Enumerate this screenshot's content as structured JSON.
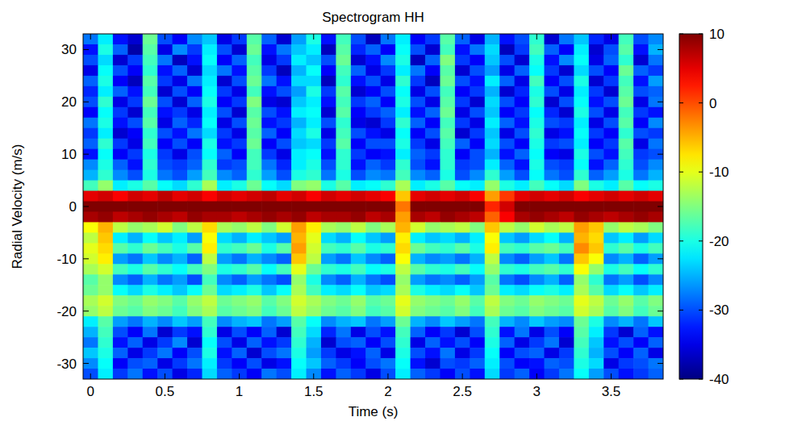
{
  "chart_data": {
    "type": "heatmap",
    "title": "Spectrogram HH",
    "x_label": "Time (s)",
    "y_label": "Radial Velocity (m/s)",
    "x": [
      0,
      0.1,
      0.2,
      0.3,
      0.4,
      0.5,
      0.6,
      0.7,
      0.8,
      0.9,
      1,
      1.1,
      1.2,
      1.3,
      1.4,
      1.5,
      1.6,
      1.7,
      1.8,
      1.9,
      2,
      2.1,
      2.2,
      2.3,
      2.4,
      2.5,
      2.6,
      2.7,
      2.8,
      2.9,
      3,
      3.1,
      3.2,
      3.3,
      3.4,
      3.5,
      3.6,
      3.7,
      3.8
    ],
    "y": [
      32,
      30,
      28,
      26,
      24,
      22,
      20,
      18,
      16,
      14,
      12,
      10,
      8,
      6,
      4,
      2,
      0,
      -2,
      -4,
      -6,
      -8,
      -10,
      -12,
      -14,
      -16,
      -18,
      -20,
      -22,
      -24,
      -26,
      -28,
      -30,
      -32
    ],
    "cells": [
      [
        -28,
        -22,
        -33,
        -36,
        -16,
        -30,
        -34,
        -27,
        -24,
        -35,
        -31,
        -17,
        -29,
        -36,
        -26,
        -20,
        -33,
        -18,
        -30,
        -37,
        -28,
        -22,
        -34,
        -31,
        -17,
        -29,
        -35,
        -25,
        -33,
        -30,
        -19,
        -36,
        -28,
        -24,
        -32,
        -35,
        -18,
        -30,
        -27
      ],
      [
        -33,
        -20,
        -29,
        -38,
        -17,
        -35,
        -27,
        -31,
        -22,
        -30,
        -36,
        -16,
        -33,
        -28,
        -24,
        -22,
        -37,
        -17,
        -32,
        -29,
        -34,
        -21,
        -30,
        -36,
        -18,
        -33,
        -28,
        -23,
        -37,
        -31,
        -18,
        -29,
        -34,
        -22,
        -36,
        -30,
        -17,
        -33,
        -25
      ],
      [
        -30,
        -23,
        -36,
        -31,
        -18,
        -28,
        -37,
        -33,
        -21,
        -34,
        -29,
        -18,
        -35,
        -31,
        -22,
        -24,
        -30,
        -16,
        -36,
        -33,
        -27,
        -20,
        -37,
        -29,
        -15,
        -31,
        -34,
        -24,
        -30,
        -36,
        -20,
        -33,
        -27,
        -21,
        -35,
        -29,
        -19,
        -36,
        -28
      ],
      [
        -35,
        -21,
        -30,
        -34,
        -19,
        -33,
        -29,
        -36,
        -23,
        -28,
        -33,
        -17,
        -31,
        -37,
        -25,
        -21,
        -34,
        -18,
        -29,
        -35,
        -31,
        -22,
        -28,
        -34,
        -17,
        -36,
        -30,
        -26,
        -35,
        -29,
        -21,
        -31,
        -36,
        -23,
        -30,
        -34,
        -16,
        -29,
        -31
      ],
      [
        -29,
        -20,
        -34,
        -37,
        -17,
        -31,
        -35,
        -28,
        -22,
        -36,
        -30,
        -16,
        -28,
        -33,
        -23,
        -23,
        -37,
        -19,
        -33,
        -30,
        -35,
        -19,
        -31,
        -37,
        -16,
        -30,
        -33,
        -22,
        -29,
        -35,
        -18,
        -34,
        -30,
        -20,
        -36,
        -31,
        -18,
        -33,
        -26
      ],
      [
        -32,
        -22,
        -29,
        -33,
        -18,
        -36,
        -30,
        -34,
        -21,
        -31,
        -35,
        -18,
        -33,
        -30,
        -26,
        -20,
        -31,
        -17,
        -36,
        -34,
        -30,
        -21,
        -35,
        -30,
        -18,
        -34,
        -31,
        -25,
        -36,
        -32,
        -20,
        -30,
        -35,
        -22,
        -31,
        -36,
        -17,
        -30,
        -29
      ],
      [
        -30,
        -19,
        -35,
        -31,
        -16,
        -30,
        -36,
        -29,
        -20,
        -34,
        -31,
        -15,
        -35,
        -36,
        -24,
        -22,
        -33,
        -18,
        -31,
        -29,
        -34,
        -20,
        -30,
        -35,
        -17,
        -31,
        -36,
        -23,
        -30,
        -34,
        -19,
        -36,
        -30,
        -21,
        -33,
        -30,
        -16,
        -35,
        -28
      ],
      [
        -34,
        -21,
        -31,
        -36,
        -18,
        -33,
        -31,
        -35,
        -22,
        -30,
        -36,
        -17,
        -30,
        -33,
        -22,
        -21,
        -36,
        -17,
        -34,
        -31,
        -29,
        -22,
        -33,
        -29,
        -16,
        -35,
        -30,
        -24,
        -34,
        -31,
        -21,
        -32,
        -36,
        -20,
        -30,
        -35,
        -18,
        -31,
        -33
      ],
      [
        -28,
        -20,
        -33,
        -30,
        -17,
        -35,
        -29,
        -32,
        -21,
        -35,
        -30,
        -16,
        -33,
        -31,
        -25,
        -22,
        -30,
        -19,
        -35,
        -36,
        -31,
        -19,
        -29,
        -34,
        -18,
        -31,
        -35,
        -22,
        -29,
        -33,
        -20,
        -30,
        -31,
        -22,
        -35,
        -30,
        -17,
        -34,
        -27
      ],
      [
        -31,
        -22,
        -36,
        -34,
        -19,
        -30,
        -33,
        -28,
        -23,
        -31,
        -35,
        -17,
        -29,
        -34,
        -23,
        -20,
        -35,
        -18,
        -30,
        -33,
        -35,
        -21,
        -34,
        -30,
        -17,
        -36,
        -31,
        -24,
        -35,
        -30,
        -19,
        -35,
        -33,
        -21,
        -31,
        -34,
        -19,
        -30,
        -31
      ],
      [
        -29,
        -19,
        -31,
        -35,
        -18,
        -34,
        -30,
        -34,
        -20,
        -33,
        -31,
        -16,
        -34,
        -30,
        -24,
        -23,
        -31,
        -17,
        -34,
        -30,
        -30,
        -20,
        -31,
        -35,
        -18,
        -29,
        -34,
        -23,
        -30,
        -34,
        -20,
        -31,
        -30,
        -22,
        -34,
        -31,
        -17,
        -35,
        -28
      ],
      [
        -33,
        -21,
        -34,
        -31,
        -20,
        -31,
        -35,
        -30,
        -21,
        -29,
        -34,
        -18,
        -31,
        -35,
        -22,
        -21,
        -33,
        -19,
        -31,
        -34,
        -33,
        -22,
        -29,
        -31,
        -19,
        -34,
        -30,
        -25,
        -33,
        -29,
        -21,
        -34,
        -35,
        -20,
        -30,
        -33,
        -18,
        -31,
        -30
      ],
      [
        -27,
        -20,
        -29,
        -33,
        -19,
        -30,
        -31,
        -29,
        -19,
        -31,
        -30,
        -18,
        -28,
        -32,
        -22,
        -20,
        -30,
        -19,
        -33,
        -29,
        -31,
        -19,
        -30,
        -33,
        -19,
        -31,
        -30,
        -22,
        -29,
        -33,
        -20,
        -30,
        -31,
        -21,
        -33,
        -29,
        -19,
        -30,
        -27
      ],
      [
        -25,
        -19,
        -27,
        -30,
        -20,
        -28,
        -30,
        -26,
        -18,
        -27,
        -29,
        -19,
        -26,
        -30,
        -20,
        -19,
        -28,
        -20,
        -30,
        -27,
        -28,
        -18,
        -27,
        -29,
        -20,
        -30,
        -27,
        -19,
        -26,
        -30,
        -21,
        -28,
        -30,
        -19,
        -29,
        -26,
        -20,
        -28,
        -25
      ],
      [
        -18,
        -14,
        -22,
        -20,
        -17,
        -21,
        -23,
        -19,
        -13,
        -22,
        -20,
        -16,
        -21,
        -23,
        -15,
        -14,
        -20,
        -17,
        -22,
        -21,
        -19,
        -13,
        -22,
        -20,
        -17,
        -21,
        -22,
        -14,
        -20,
        -22,
        -18,
        -21,
        -23,
        -15,
        -20,
        -22,
        -17,
        -21,
        -20
      ],
      [
        5,
        6,
        4,
        6,
        5,
        7,
        5,
        6,
        4,
        6,
        5,
        6,
        7,
        5,
        6,
        4,
        6,
        5,
        6,
        5,
        4,
        -6,
        5,
        6,
        5,
        6,
        4,
        -4,
        1,
        5,
        6,
        5,
        6,
        4,
        5,
        6,
        5,
        6,
        5
      ],
      [
        10,
        11,
        10,
        12,
        10,
        11,
        12,
        10,
        10,
        11,
        12,
        10,
        11,
        10,
        11,
        10,
        12,
        11,
        10,
        11,
        10,
        -2,
        11,
        10,
        12,
        11,
        10,
        2,
        6,
        11,
        10,
        12,
        11,
        10,
        11,
        10,
        12,
        11,
        10
      ],
      [
        8,
        9,
        7,
        8,
        9,
        8,
        7,
        9,
        8,
        8,
        7,
        8,
        9,
        8,
        9,
        7,
        8,
        8,
        9,
        7,
        8,
        -4,
        8,
        7,
        9,
        8,
        7,
        -1,
        4,
        8,
        9,
        8,
        7,
        9,
        8,
        7,
        8,
        9,
        8
      ],
      [
        -9,
        -5,
        -12,
        -14,
        -13,
        -11,
        -15,
        -12,
        -7,
        -13,
        -14,
        -12,
        -15,
        -11,
        -4,
        -8,
        -13,
        -14,
        -12,
        -15,
        -13,
        -5,
        -11,
        -14,
        -13,
        -12,
        -15,
        -6,
        -12,
        -14,
        -11,
        -13,
        -12,
        -4,
        -6,
        -14,
        -12,
        -13,
        -15
      ],
      [
        -12,
        -6,
        -22,
        -25,
        -21,
        -24,
        -22,
        -26,
        -9,
        -23,
        -25,
        -22,
        -24,
        -26,
        -5,
        -10,
        -23,
        -25,
        -21,
        -24,
        -26,
        -8,
        -22,
        -24,
        -23,
        -25,
        -22,
        -9,
        -24,
        -26,
        -23,
        -21,
        -25,
        -5,
        -7,
        -24,
        -22,
        -26,
        -23
      ],
      [
        -10,
        -7,
        -17,
        -19,
        -16,
        -18,
        -20,
        -17,
        -8,
        -19,
        -18,
        -16,
        -20,
        -17,
        -4,
        -11,
        -18,
        -19,
        -17,
        -20,
        -19,
        -7,
        -16,
        -18,
        -19,
        -17,
        -20,
        -8,
        -18,
        -19,
        -17,
        -16,
        -18,
        -3,
        -6,
        -19,
        -17,
        -20,
        -18
      ],
      [
        -11,
        -8,
        -26,
        -28,
        -24,
        -27,
        -25,
        -29,
        -12,
        -26,
        -28,
        -25,
        -27,
        -29,
        -6,
        -12,
        -26,
        -28,
        -24,
        -27,
        -29,
        -9,
        -25,
        -27,
        -26,
        -28,
        -25,
        -12,
        -27,
        -29,
        -26,
        -24,
        -28,
        -6,
        -9,
        -27,
        -25,
        -29,
        -26
      ],
      [
        -13,
        -11,
        -18,
        -20,
        -17,
        -19,
        -21,
        -18,
        -15,
        -20,
        -19,
        -17,
        -21,
        -18,
        -10,
        -16,
        -19,
        -20,
        -18,
        -21,
        -20,
        -12,
        -17,
        -19,
        -20,
        -18,
        -21,
        -14,
        -19,
        -20,
        -18,
        -17,
        -19,
        -9,
        -14,
        -20,
        -18,
        -21,
        -19
      ],
      [
        -17,
        -14,
        -27,
        -29,
        -25,
        -28,
        -26,
        -30,
        -18,
        -27,
        -29,
        -26,
        -28,
        -30,
        -14,
        -20,
        -27,
        -29,
        -25,
        -28,
        -30,
        -14,
        -26,
        -28,
        -27,
        -29,
        -26,
        -17,
        -28,
        -30,
        -27,
        -25,
        -29,
        -14,
        -19,
        -28,
        -26,
        -30,
        -27
      ],
      [
        -16,
        -14,
        -21,
        -23,
        -20,
        -22,
        -24,
        -21,
        -16,
        -23,
        -22,
        -20,
        -24,
        -21,
        -13,
        -18,
        -22,
        -23,
        -21,
        -24,
        -23,
        -13,
        -20,
        -22,
        -23,
        -21,
        -24,
        -16,
        -22,
        -23,
        -21,
        -20,
        -22,
        -13,
        -17,
        -23,
        -21,
        -24,
        -22
      ],
      [
        -13,
        -11,
        -15,
        -16,
        -14,
        -15,
        -17,
        -14,
        -12,
        -16,
        -15,
        -14,
        -17,
        -15,
        -11,
        -13,
        -15,
        -16,
        -14,
        -17,
        -16,
        -10,
        -14,
        -15,
        -16,
        -14,
        -17,
        -12,
        -15,
        -16,
        -14,
        -15,
        -16,
        -10,
        -12,
        -16,
        -14,
        -17,
        -15
      ],
      [
        -14,
        -12,
        -16,
        -17,
        -15,
        -16,
        -18,
        -15,
        -13,
        -17,
        -16,
        -15,
        -18,
        -16,
        -12,
        -14,
        -16,
        -17,
        -15,
        -18,
        -17,
        -11,
        -15,
        -16,
        -17,
        -15,
        -18,
        -13,
        -16,
        -17,
        -15,
        -16,
        -17,
        -11,
        -13,
        -17,
        -15,
        -18,
        -16
      ],
      [
        -22,
        -17,
        -26,
        -28,
        -25,
        -27,
        -24,
        -26,
        -18,
        -27,
        -25,
        -24,
        -28,
        -26,
        -17,
        -21,
        -27,
        -25,
        -24,
        -28,
        -26,
        -16,
        -25,
        -27,
        -24,
        -26,
        -28,
        -18,
        -25,
        -27,
        -24,
        -26,
        -27,
        -16,
        -20,
        -27,
        -25,
        -28,
        -24
      ],
      [
        -25,
        -18,
        -30,
        -34,
        -28,
        -36,
        -31,
        -33,
        -19,
        -35,
        -30,
        -34,
        -29,
        -36,
        -18,
        -23,
        -32,
        -28,
        -35,
        -30,
        -33,
        -18,
        -29,
        -34,
        -31,
        -36,
        -30,
        -19,
        -33,
        -28,
        -35,
        -30,
        -34,
        -17,
        -22,
        -31,
        -36,
        -29,
        -33
      ],
      [
        -28,
        -19,
        -33,
        -29,
        -35,
        -31,
        -27,
        -36,
        -21,
        -30,
        -35,
        -29,
        -33,
        -31,
        -19,
        -25,
        -36,
        -30,
        -29,
        -34,
        -30,
        -19,
        -35,
        -29,
        -33,
        -30,
        -34,
        -20,
        -29,
        -35,
        -31,
        -28,
        -36,
        -18,
        -24,
        -33,
        -30,
        -34,
        -29
      ],
      [
        -24,
        -20,
        -29,
        -35,
        -31,
        -28,
        -34,
        -30,
        -20,
        -33,
        -29,
        -36,
        -30,
        -28,
        -20,
        -26,
        -31,
        -35,
        -33,
        -29,
        -35,
        -20,
        -30,
        -33,
        -28,
        -35,
        -31,
        -21,
        -34,
        -30,
        -29,
        -35,
        -31,
        -19,
        -25,
        -30,
        -34,
        -29,
        -35
      ],
      [
        -27,
        -21,
        -34,
        -30,
        -29,
        -35,
        -31,
        -28,
        -22,
        -31,
        -34,
        -30,
        -35,
        -33,
        -21,
        -24,
        -29,
        -31,
        -34,
        -30,
        -28,
        -21,
        -33,
        -36,
        -30,
        -31,
        -29,
        -22,
        -30,
        -34,
        -33,
        -29,
        -30,
        -20,
        -23,
        -35,
        -31,
        -30,
        -28
      ],
      [
        -30,
        -22,
        -31,
        -28,
        -33,
        -30,
        -35,
        -32,
        -23,
        -29,
        -31,
        -34,
        -28,
        -30,
        -22,
        -27,
        -33,
        -29,
        -31,
        -35,
        -30,
        -22,
        -29,
        -31,
        -34,
        -30,
        -33,
        -23,
        -31,
        -29,
        -34,
        -31,
        -28,
        -21,
        -26,
        -30,
        -33,
        -31,
        -29
      ]
    ],
    "xlim": [
      -0.05,
      3.85
    ],
    "ylim": [
      -33,
      33
    ],
    "xticks": [
      0,
      0.5,
      1,
      1.5,
      2,
      2.5,
      3,
      3.5
    ],
    "yticks": [
      -30,
      -20,
      -10,
      0,
      10,
      20,
      30
    ],
    "colorbar_range": [
      -40,
      10
    ],
    "colorbar_ticks": [
      -40,
      -30,
      -20,
      -10,
      0,
      10
    ]
  }
}
